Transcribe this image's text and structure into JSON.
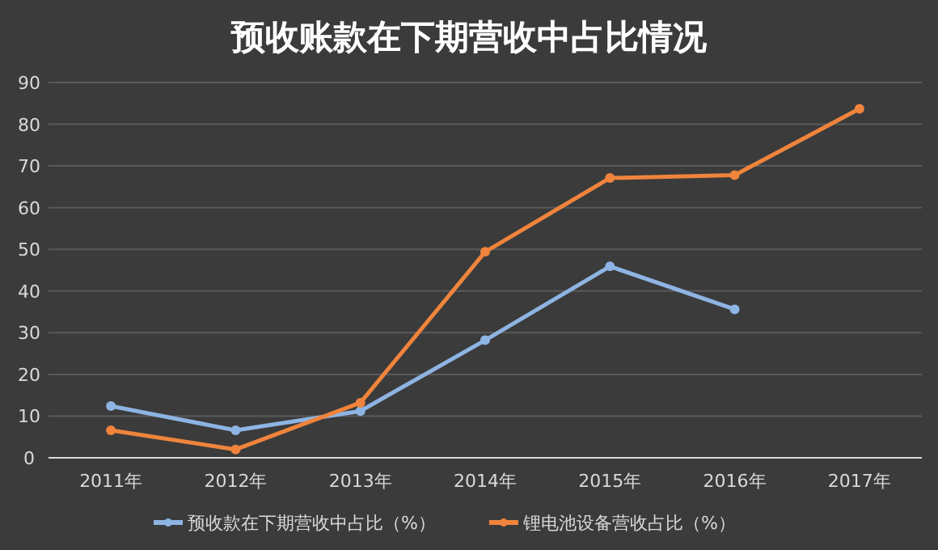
{
  "chart_data": {
    "type": "line",
    "title": "预收账款在下期营收中占比情况",
    "categories": [
      "2011年",
      "2012年",
      "2013年",
      "2014年",
      "2015年",
      "2016年",
      "2017年"
    ],
    "series": [
      {
        "name": "预收款在下期营收中占比（%）",
        "color": "#8eb4e3",
        "values": [
          12.4,
          6.6,
          11.2,
          28.2,
          45.9,
          35.6,
          null
        ]
      },
      {
        "name": "锂电池设备营收占比（%）",
        "color": "#f0843c",
        "values": [
          6.6,
          2.0,
          13.2,
          49.4,
          67.1,
          67.8,
          83.7
        ]
      }
    ],
    "ylim": [
      0,
      90
    ],
    "yticks": [
      0,
      10,
      20,
      30,
      40,
      50,
      60,
      70,
      80,
      90
    ],
    "grid": "y",
    "legend": "bottom",
    "marker": "circle",
    "line_style": "solid"
  }
}
